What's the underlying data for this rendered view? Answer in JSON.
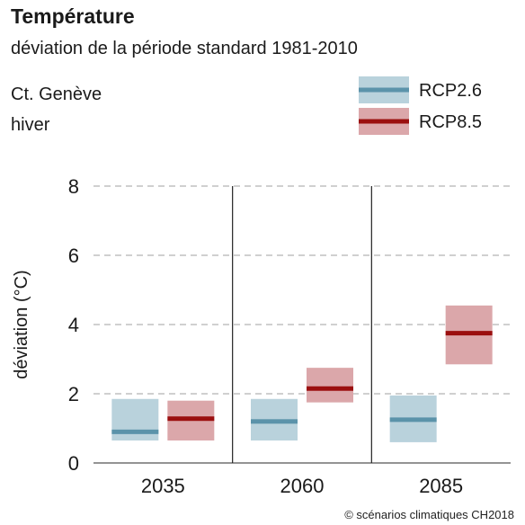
{
  "header": {
    "title": "Température",
    "subtitle": "déviation de la période standard 1981-2010",
    "location": "Ct. Genève",
    "season": "hiver"
  },
  "credit": "© scénarios climatiques CH2018",
  "colors": {
    "rcp26_line": "#5b93aa",
    "rcp26_fill": "#b9d2dc",
    "rcp85_line": "#9b0f0f",
    "rcp85_fill": "#dba7aa",
    "grid": "#b5b5b5"
  },
  "chart_data": {
    "type": "bar",
    "ylabel": "déviation (°C)",
    "ylim": [
      0,
      8
    ],
    "yticks": [
      "0",
      "2",
      "4",
      "6",
      "8"
    ],
    "grid": "dashed horizontal",
    "legend_placement": "top-right",
    "categories": [
      "2035",
      "2060",
      "2085"
    ],
    "series": [
      {
        "name": "RCP2.6",
        "median": [
          0.9,
          1.2,
          1.25
        ],
        "low": [
          0.65,
          0.65,
          0.6
        ],
        "high": [
          1.85,
          1.85,
          1.95
        ]
      },
      {
        "name": "RCP8.5",
        "median": [
          1.28,
          2.15,
          3.75
        ],
        "low": [
          0.65,
          1.75,
          2.85
        ],
        "high": [
          1.8,
          2.75,
          4.55
        ]
      }
    ]
  }
}
